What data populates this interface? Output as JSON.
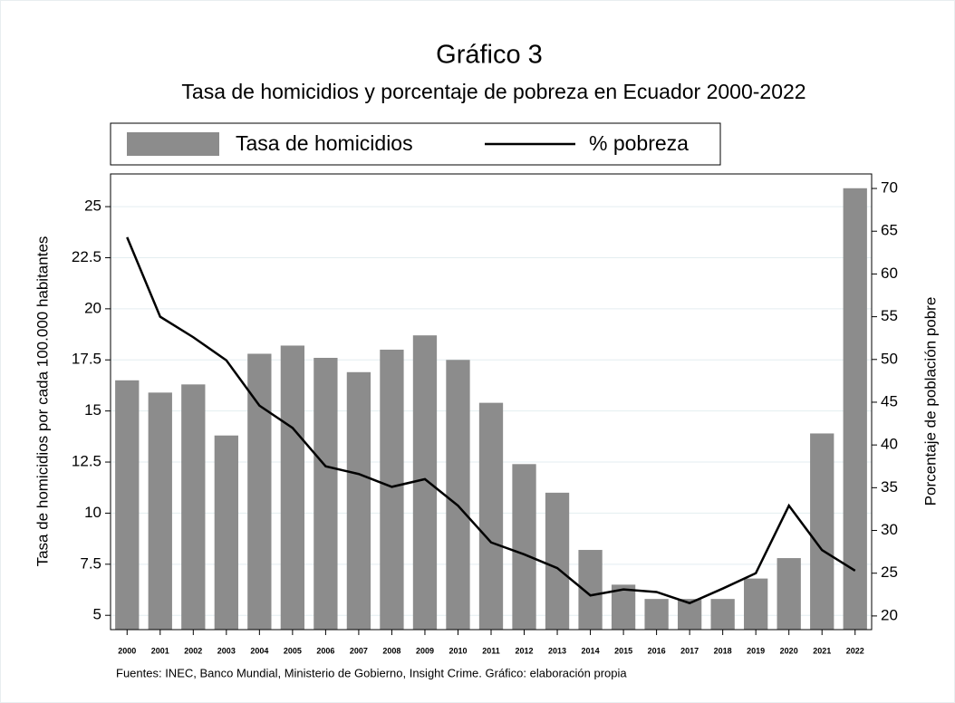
{
  "chart_data": {
    "type": "bar-line",
    "title": "Gráfico 3",
    "subtitle": "Tasa de homicidios y porcentaje de pobreza en Ecuador 2000-2022",
    "ylabel": "Tasa de homicidios por cada 100.000 habitantes",
    "y2label": "Porcentaje de población pobre",
    "source": "Fuentes: INEC, Banco Mundial, Ministerio de Gobierno, Insight Crime. Gráfico: elaboración propia",
    "categories": [
      "2000",
      "2001",
      "2002",
      "2003",
      "2004",
      "2005",
      "2006",
      "2007",
      "2008",
      "2009",
      "2010",
      "2011",
      "2012",
      "2013",
      "2014",
      "2015",
      "2016",
      "2017",
      "2018",
      "2019",
      "2020",
      "2021",
      "2022"
    ],
    "series": [
      {
        "name": "Tasa de homicidios",
        "kind": "bar",
        "color": "#8c8c8c",
        "values": [
          16.5,
          15.9,
          16.3,
          13.8,
          17.8,
          18.2,
          17.6,
          16.9,
          18.0,
          18.7,
          17.5,
          15.4,
          12.4,
          11.0,
          8.2,
          6.5,
          5.8,
          5.8,
          5.8,
          6.8,
          7.8,
          13.9,
          25.9
        ]
      },
      {
        "name": "% pobreza",
        "kind": "line",
        "axis": "y2",
        "color": "#000000",
        "values": [
          64.3,
          55.0,
          52.6,
          49.9,
          44.6,
          42.0,
          37.5,
          36.6,
          35.1,
          36.0,
          32.9,
          28.6,
          27.2,
          25.6,
          22.4,
          23.1,
          22.8,
          21.5,
          23.2,
          25.0,
          32.9,
          27.7,
          25.3
        ]
      }
    ],
    "ylim": [
      4.3,
      26.6
    ],
    "yticks": [
      5,
      7.5,
      10,
      12.5,
      15,
      17.5,
      20,
      22.5,
      25
    ],
    "y2lim": [
      18.4,
      71.7
    ],
    "y2ticks": [
      20,
      25,
      30,
      35,
      40,
      45,
      50,
      55,
      60,
      65,
      70
    ],
    "grid": true,
    "legend": "top"
  }
}
